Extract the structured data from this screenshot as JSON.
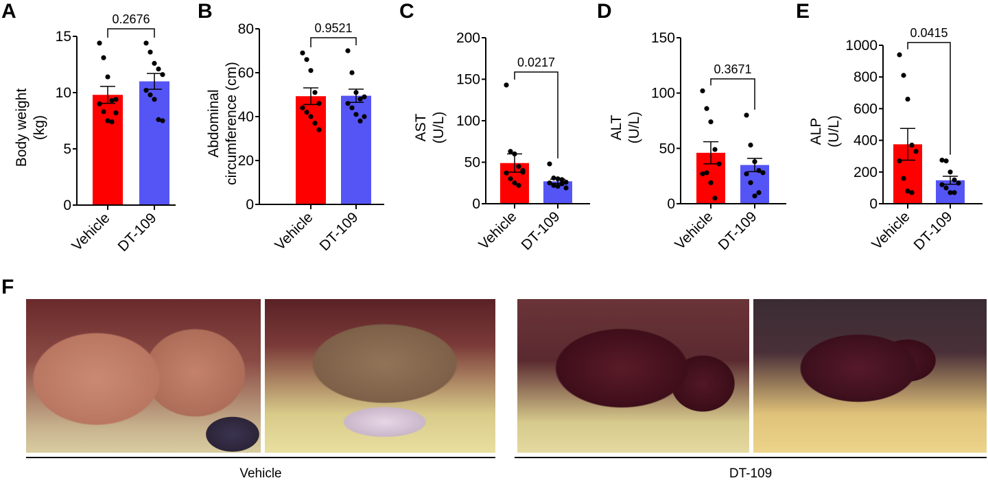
{
  "panel_letters": {
    "A": "A",
    "B": "B",
    "C": "C",
    "D": "D",
    "E": "E",
    "F": "F"
  },
  "colors": {
    "vehicle": "#fe0000",
    "dt109": "#5555f5",
    "axis": "#000000",
    "dot": "#000000"
  },
  "chart_data": [
    {
      "type": "bar",
      "panel": "A",
      "ylabel_lines": [
        "Body weight",
        "(kg)"
      ],
      "ylim": [
        0,
        15
      ],
      "yticks": [
        0,
        5,
        10,
        15
      ],
      "categories": [
        "Vehicle",
        "DT-109"
      ],
      "means": [
        9.8,
        11.0
      ],
      "sem": [
        0.75,
        0.7
      ],
      "points": [
        [
          14.4,
          13.1,
          11.4,
          9.3,
          9.4,
          9.0,
          8.3,
          7.5,
          7.4,
          8.2
        ],
        [
          14.4,
          13.6,
          12.6,
          12.1,
          11.6,
          10.2,
          9.8,
          9.4,
          7.6,
          7.5
        ]
      ],
      "p_value": "0.2676"
    },
    {
      "type": "bar",
      "panel": "B",
      "ylabel_lines": [
        "Abdominal",
        "circumference (cm)"
      ],
      "ylim": [
        0,
        80
      ],
      "yticks": [
        0,
        20,
        40,
        60,
        80
      ],
      "categories": [
        "Vehicle",
        "DT-109"
      ],
      "means": [
        49.3,
        49.5
      ],
      "sem": [
        3.8,
        3.0
      ],
      "points": [
        [
          69,
          66,
          61,
          51,
          46,
          44,
          42,
          40,
          37,
          34
        ],
        [
          70,
          60,
          51,
          48,
          49,
          46,
          44,
          41,
          38,
          40
        ]
      ],
      "p_value": "0.9521"
    },
    {
      "type": "bar",
      "panel": "C",
      "ylabel_lines": [
        "AST",
        "(U/L)"
      ],
      "ylim": [
        0,
        200
      ],
      "yticks": [
        0,
        50,
        100,
        150,
        200
      ],
      "categories": [
        "Vehicle",
        "DT-109"
      ],
      "means": [
        49,
        27
      ],
      "sem": [
        11,
        2.5
      ],
      "points": [
        [
          143,
          63,
          60,
          45,
          40,
          37,
          30,
          25,
          22,
          38
        ],
        [
          48,
          31,
          30,
          29,
          26,
          25,
          22,
          21,
          24,
          19
        ]
      ],
      "p_value": "0.0217"
    },
    {
      "type": "bar",
      "panel": "D",
      "ylabel_lines": [
        "ALT",
        "(U/L)"
      ],
      "ylim": [
        0,
        150
      ],
      "yticks": [
        0,
        50,
        100,
        150
      ],
      "categories": [
        "Vehicle",
        "DT-109"
      ],
      "means": [
        46,
        35
      ],
      "sem": [
        10,
        6
      ],
      "points": [
        [
          102,
          86,
          74,
          49,
          36,
          27,
          28,
          19,
          5
        ],
        [
          80,
          53,
          38,
          30,
          28,
          27,
          19,
          7,
          10
        ]
      ],
      "p_value": "0.3671"
    },
    {
      "type": "bar",
      "panel": "E",
      "ylabel_lines": [
        "ALP",
        "(U/L)"
      ],
      "ylim": [
        0,
        1000
      ],
      "yticks": [
        0,
        200,
        400,
        600,
        800,
        1000
      ],
      "categories": [
        "Vehicle",
        "DT-109"
      ],
      "means": [
        375,
        148
      ],
      "sem": [
        100,
        25
      ],
      "points": [
        [
          940,
          810,
          660,
          370,
          330,
          270,
          160,
          80,
          70
        ],
        [
          275,
          270,
          200,
          150,
          130,
          120,
          100,
          70,
          70
        ]
      ],
      "p_value": "0.0415"
    }
  ],
  "photos": {
    "groups": [
      {
        "label": "Vehicle"
      },
      {
        "label": "DT-109"
      }
    ]
  }
}
